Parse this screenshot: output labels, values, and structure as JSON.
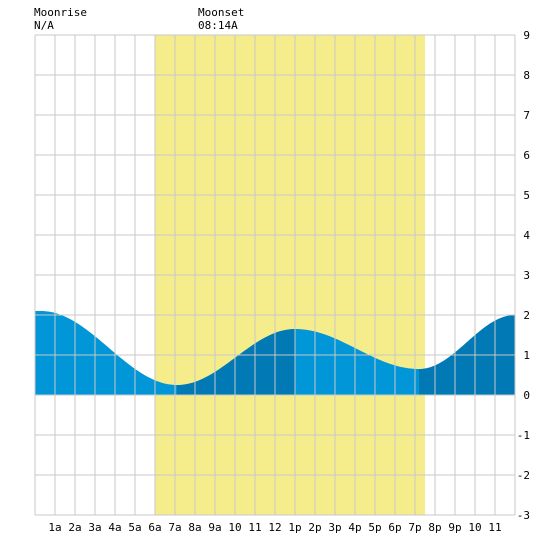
{
  "header": {
    "moonrise_label": "Moonrise",
    "moonrise_value": "N/A",
    "moonset_label": "Moonset",
    "moonset_value": "08:14A"
  },
  "chart_data": {
    "type": "area",
    "title": "",
    "xlabel": "",
    "ylabel": "",
    "xlim": [
      0,
      24
    ],
    "ylim": [
      -3,
      9
    ],
    "y_ticks": [
      -3,
      -2,
      -1,
      0,
      1,
      2,
      3,
      4,
      5,
      6,
      7,
      8,
      9
    ],
    "x_ticks": [
      {
        "x": 1,
        "label": "1a"
      },
      {
        "x": 2,
        "label": "2a"
      },
      {
        "x": 3,
        "label": "3a"
      },
      {
        "x": 4,
        "label": "4a"
      },
      {
        "x": 5,
        "label": "5a"
      },
      {
        "x": 6,
        "label": "6a"
      },
      {
        "x": 7,
        "label": "7a"
      },
      {
        "x": 8,
        "label": "8a"
      },
      {
        "x": 9,
        "label": "9a"
      },
      {
        "x": 10,
        "label": "10"
      },
      {
        "x": 11,
        "label": "11"
      },
      {
        "x": 12,
        "label": "12"
      },
      {
        "x": 13,
        "label": "1p"
      },
      {
        "x": 14,
        "label": "2p"
      },
      {
        "x": 15,
        "label": "3p"
      },
      {
        "x": 16,
        "label": "4p"
      },
      {
        "x": 17,
        "label": "5p"
      },
      {
        "x": 18,
        "label": "6p"
      },
      {
        "x": 19,
        "label": "7p"
      },
      {
        "x": 20,
        "label": "8p"
      },
      {
        "x": 21,
        "label": "9p"
      },
      {
        "x": 22,
        "label": "10"
      },
      {
        "x": 23,
        "label": "11"
      }
    ],
    "grid": true,
    "daylight": {
      "start": 6.0,
      "end": 19.5,
      "color": "#f5ec8c"
    },
    "tide_extrema": [
      {
        "x": 0.3,
        "y": 2.1
      },
      {
        "x": 7.1,
        "y": 0.25
      },
      {
        "x": 13.0,
        "y": 1.65
      },
      {
        "x": 19.2,
        "y": 0.65
      },
      {
        "x": 24.0,
        "y": 2.0
      }
    ],
    "colors": {
      "light_tide": "#0096d8",
      "dark_tide": "#0079b5",
      "grid": "#c8c8c8",
      "background": "#ffffff",
      "axis_text": "#000000"
    }
  }
}
